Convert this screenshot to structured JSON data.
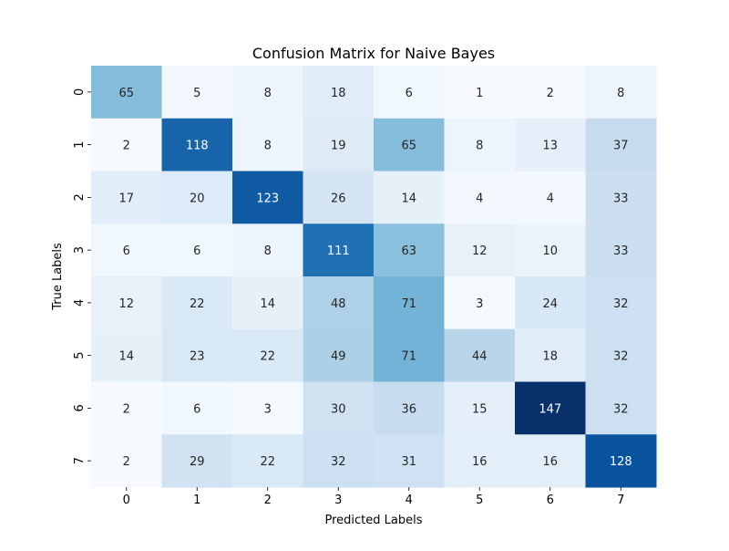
{
  "chart_data": {
    "type": "heatmap",
    "title": "Confusion Matrix for Naive Bayes",
    "xlabel": "Predicted Labels",
    "ylabel": "True Labels",
    "x_categories": [
      "0",
      "1",
      "2",
      "3",
      "4",
      "5",
      "6",
      "7"
    ],
    "y_categories": [
      "0",
      "1",
      "2",
      "3",
      "4",
      "5",
      "6",
      "7"
    ],
    "values": [
      [
        65,
        5,
        8,
        18,
        6,
        1,
        2,
        8
      ],
      [
        2,
        118,
        8,
        19,
        65,
        8,
        13,
        37
      ],
      [
        17,
        20,
        123,
        26,
        14,
        4,
        4,
        33
      ],
      [
        6,
        6,
        8,
        111,
        63,
        12,
        10,
        33
      ],
      [
        12,
        22,
        14,
        48,
        71,
        3,
        24,
        32
      ],
      [
        14,
        23,
        22,
        49,
        71,
        44,
        18,
        32
      ],
      [
        2,
        6,
        3,
        30,
        36,
        15,
        147,
        32
      ],
      [
        2,
        29,
        22,
        32,
        31,
        16,
        16,
        128
      ]
    ],
    "colormap": "Blues",
    "colorbar": false,
    "annotations": true
  }
}
